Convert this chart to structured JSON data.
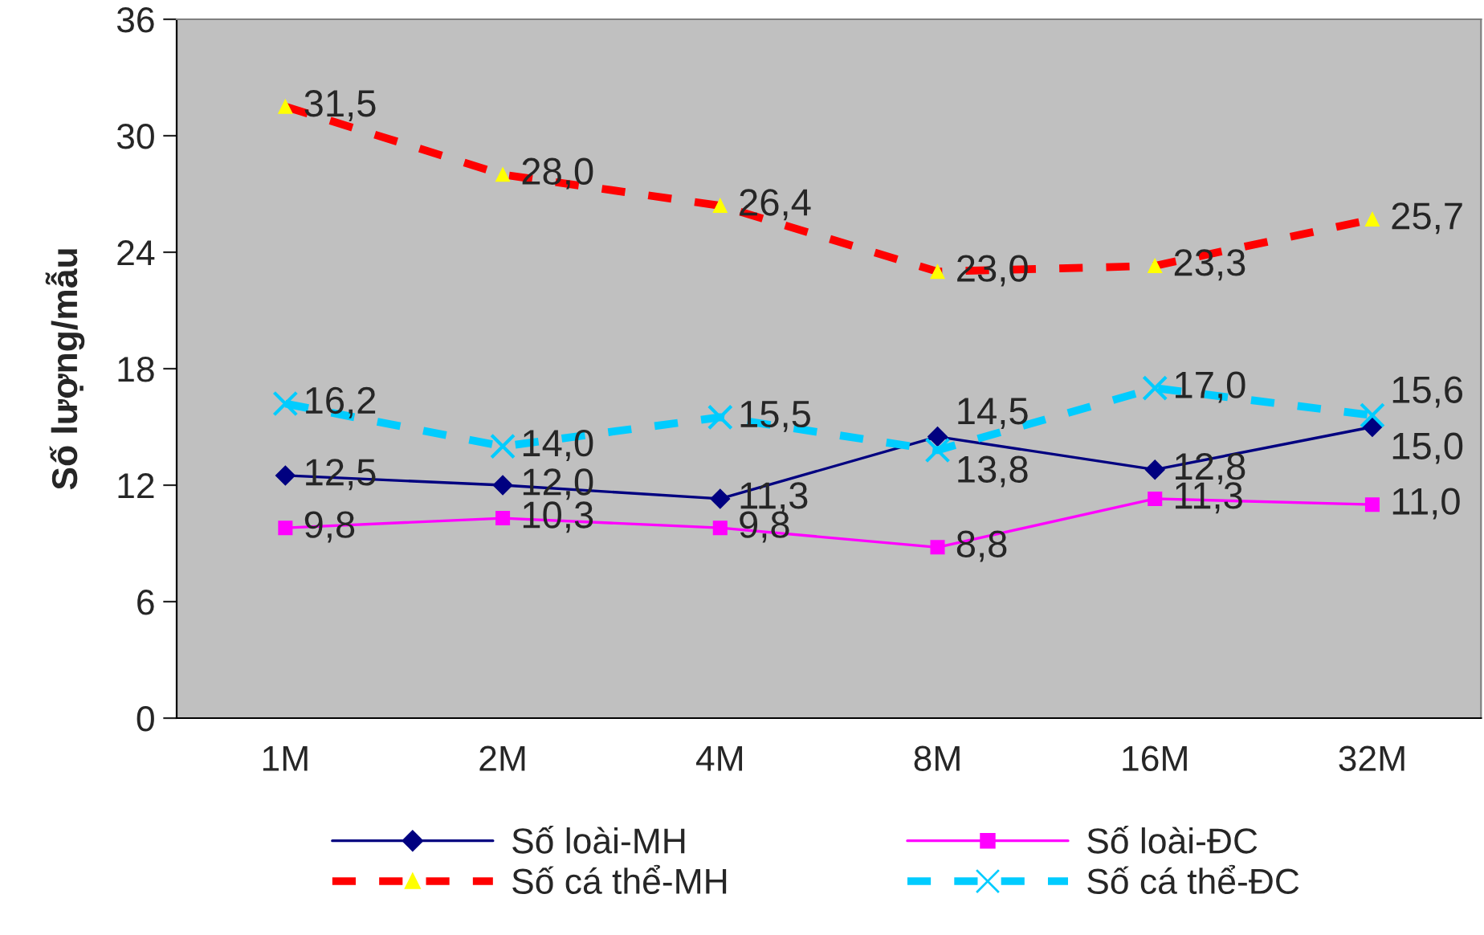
{
  "chart_data": {
    "type": "line",
    "ylabel": "Số lượng/mẫu",
    "categories": [
      "1M",
      "2M",
      "4M",
      "8M",
      "16M",
      "32M"
    ],
    "ylim": [
      0,
      36
    ],
    "yticks": [
      0,
      6,
      12,
      18,
      24,
      30,
      36
    ],
    "grid": false,
    "legend": "bottom",
    "series": [
      {
        "name": "Số loài-MH",
        "color": "#000080",
        "marker": "diamond",
        "line_style": "solid",
        "values": [
          12.5,
          12.0,
          11.3,
          14.5,
          12.8,
          15.0
        ],
        "value_labels": [
          "12,5",
          "12,0",
          "11,3",
          "14,5",
          "12,8",
          "15,0"
        ]
      },
      {
        "name": "Số loài-ĐC",
        "color": "#ff00ff",
        "marker": "square",
        "line_style": "solid",
        "values": [
          9.8,
          10.3,
          9.8,
          8.8,
          11.3,
          11.0
        ],
        "value_labels": [
          "9,8",
          "10,3",
          "9,8",
          "8,8",
          "11,3",
          "11,0"
        ]
      },
      {
        "name": "Số cá thể-MH",
        "color": "#ff0000",
        "colors": [
          "#ffff00",
          "#ffff00",
          "#ffff00",
          "#ffff00",
          "#ffff00",
          "#ffff00"
        ],
        "marker": "triangle",
        "line_style": "dashed",
        "values": [
          31.5,
          28.0,
          26.4,
          23.0,
          23.3,
          25.7
        ],
        "value_labels": [
          "31,5",
          "28,0",
          "26,4",
          "23,0",
          "23,3",
          "25,7"
        ]
      },
      {
        "name": "Số cá thể-ĐC",
        "color": "#00ccff",
        "marker": "cross",
        "line_style": "dashed",
        "values": [
          16.2,
          14.0,
          15.5,
          13.8,
          17.0,
          15.6
        ],
        "value_labels": [
          "16,2",
          "14,0",
          "15,5",
          "13,8",
          "17,0",
          "15,6"
        ]
      }
    ]
  }
}
